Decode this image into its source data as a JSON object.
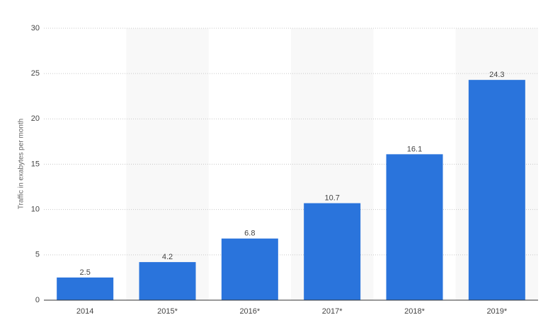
{
  "chart_data": {
    "type": "bar",
    "y_label": "Traffic in exabytes per month",
    "categories": [
      "2014",
      "2015*",
      "2016*",
      "2017*",
      "2018*",
      "2019*"
    ],
    "values": [
      2.5,
      4.2,
      6.8,
      10.7,
      16.1,
      24.3
    ],
    "color": "#2a74dc",
    "ylim": [
      0,
      30
    ],
    "yticks": [
      0,
      5,
      10,
      15,
      20,
      25,
      30
    ],
    "grid": true
  }
}
